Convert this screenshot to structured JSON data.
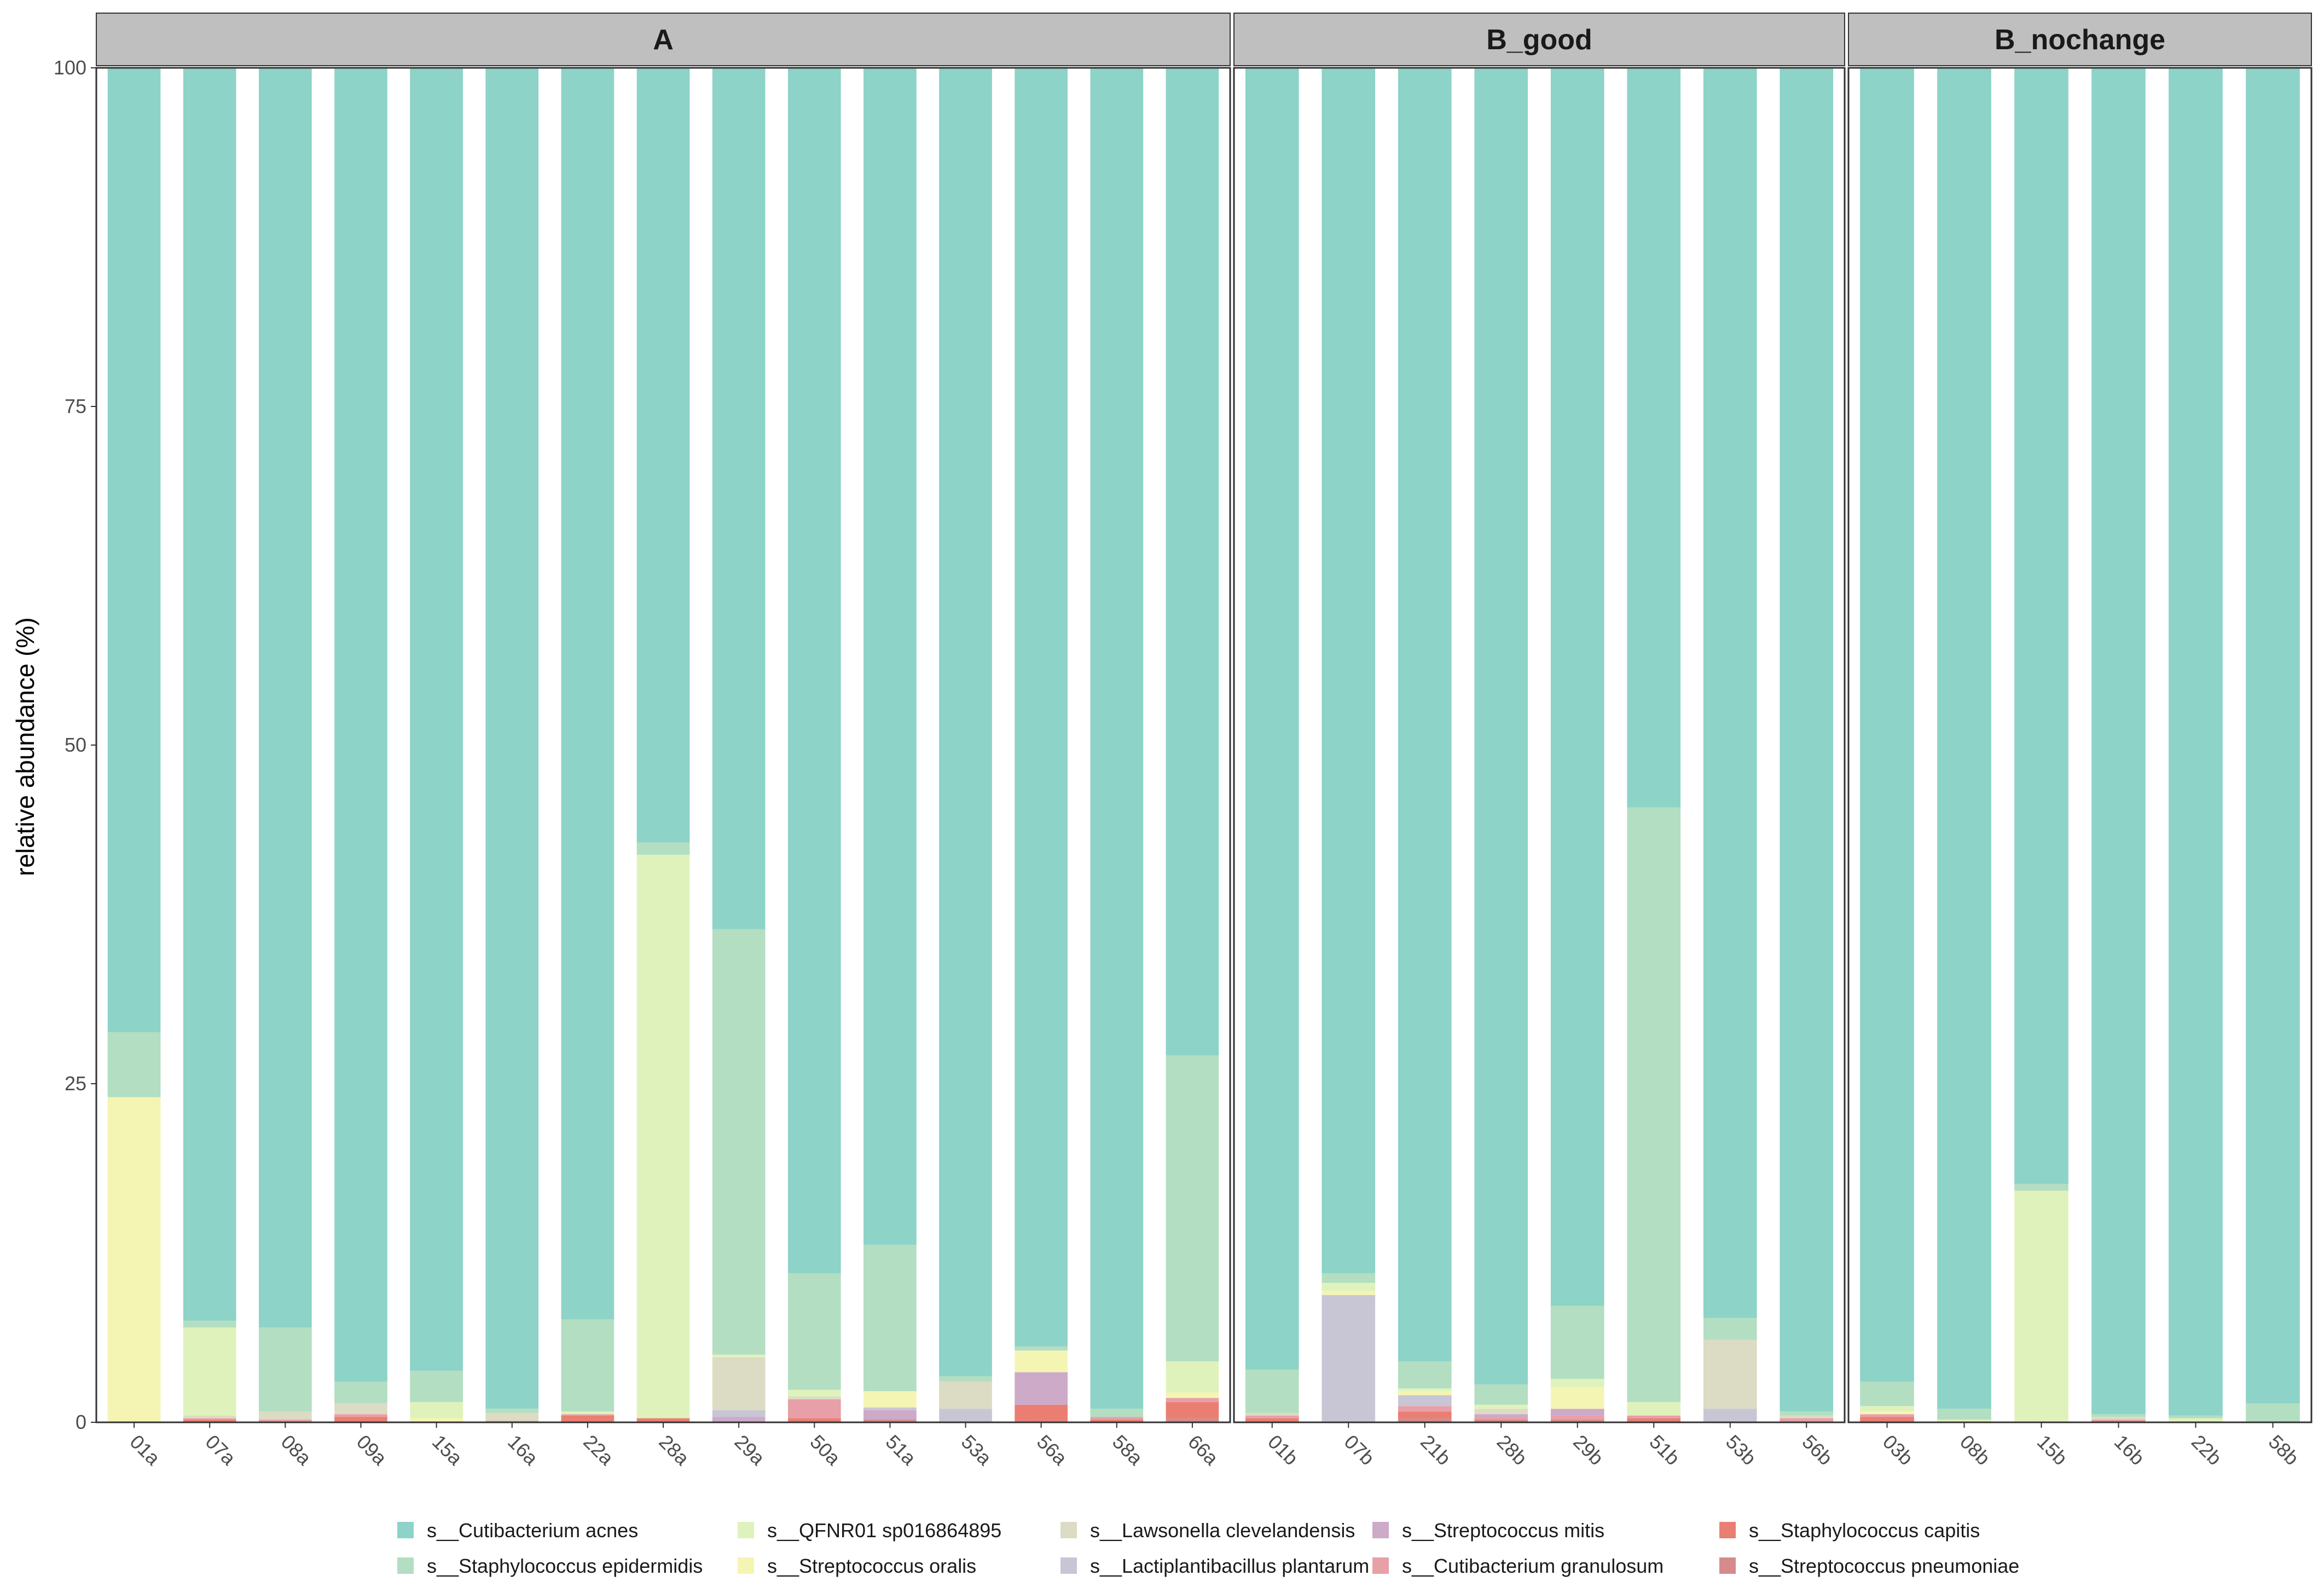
{
  "chart_data": {
    "type": "bar",
    "stacked": true,
    "ylabel": "relative abundance (%)",
    "ylim": [
      0,
      100
    ],
    "yticks": [
      0,
      25,
      50,
      75,
      100
    ],
    "legend_position": "bottom",
    "species": [
      {
        "name": "s__Cutibacterium acnes",
        "color": "#8DD3C7"
      },
      {
        "name": "s__Staphylococcus epidermidis",
        "color": "#B3DEC1"
      },
      {
        "name": "s__QFNR01 sp016864895",
        "color": "#E0F2BC"
      },
      {
        "name": "s__Streptococcus oralis",
        "color": "#F5F5B3"
      },
      {
        "name": "s__Lawsonella clevelandensis",
        "color": "#DCDBC4"
      },
      {
        "name": "s__Lactiplantibacillus plantarum",
        "color": "#C8C6D5"
      },
      {
        "name": "s__Streptococcus mitis",
        "color": "#CCAAC8"
      },
      {
        "name": "s__Cutibacterium granulosum",
        "color": "#E7A0A7"
      },
      {
        "name": "s__Staphylococcus capitis",
        "color": "#EB7E72"
      },
      {
        "name": "s__Streptococcus pneumoniae",
        "color": "#D68B8B"
      }
    ],
    "legend_order": [
      "s__Cutibacterium acnes",
      "s__Staphylococcus epidermidis",
      "s__QFNR01 sp016864895",
      "s__Streptococcus oralis",
      "s__Lawsonella clevelandensis",
      "s__Lactiplantibacillus plantarum",
      "s__Streptococcus mitis",
      "s__Cutibacterium granulosum",
      "s__Staphylococcus capitis",
      "s__Streptococcus pneumoniae"
    ],
    "panels": [
      {
        "title": "A",
        "samples": [
          {
            "id": "01a",
            "values": [
              71.2,
              4.8,
              0,
              24.0,
              0,
              0,
              0,
              0,
              0,
              0
            ]
          },
          {
            "id": "07a",
            "values": [
              92.5,
              0.5,
              6.5,
              0,
              0.2,
              0,
              0,
              0.1,
              0.2,
              0
            ]
          },
          {
            "id": "08a",
            "values": [
              93.0,
              6.2,
              0,
              0,
              0.6,
              0,
              0,
              0.2,
              0,
              0
            ]
          },
          {
            "id": "09a",
            "values": [
              97.0,
              1.6,
              0,
              0,
              0.8,
              0,
              0,
              0.2,
              0.4,
              0
            ]
          },
          {
            "id": "15a",
            "values": [
              96.2,
              2.3,
              1.2,
              0.3,
              0,
              0,
              0,
              0,
              0,
              0
            ]
          },
          {
            "id": "16a",
            "values": [
              99.0,
              0.3,
              0,
              0,
              0.6,
              0,
              0,
              0.1,
              0,
              0
            ]
          },
          {
            "id": "22a",
            "values": [
              92.4,
              6.8,
              0.2,
              0,
              0,
              0,
              0,
              0.1,
              0.5,
              0
            ]
          },
          {
            "id": "28a",
            "values": [
              57.2,
              0.9,
              41.6,
              0,
              0,
              0,
              0,
              0,
              0.3,
              0
            ]
          },
          {
            "id": "29a",
            "values": [
              63.6,
              31.4,
              0.2,
              0,
              3.9,
              0.5,
              0.4,
              0,
              0,
              0
            ]
          },
          {
            "id": "50a",
            "values": [
              89.0,
              8.6,
              0.5,
              0,
              0.2,
              0,
              0,
              1.4,
              0.3,
              0
            ]
          },
          {
            "id": "51a",
            "values": [
              86.9,
              10.8,
              0,
              1.2,
              0,
              0.2,
              0.7,
              0,
              0,
              0.2
            ]
          },
          {
            "id": "53a",
            "values": [
              96.6,
              0.4,
              0,
              0,
              2.0,
              1.0,
              0,
              0,
              0,
              0
            ]
          },
          {
            "id": "56a",
            "values": [
              94.4,
              0.3,
              0,
              1.6,
              0,
              0,
              2.4,
              0,
              1.2,
              0.1
            ]
          },
          {
            "id": "58a",
            "values": [
              99.0,
              0.6,
              0,
              0,
              0,
              0,
              0,
              0.2,
              0.2,
              0
            ]
          },
          {
            "id": "66a",
            "values": [
              72.9,
              22.6,
              2.3,
              0.4,
              0,
              0,
              0,
              0.3,
              1.2,
              0.3
            ]
          }
        ]
      },
      {
        "title": "B_good",
        "samples": [
          {
            "id": "01b",
            "values": [
              96.1,
              3.2,
              0,
              0,
              0.2,
              0,
              0,
              0.2,
              0.3,
              0
            ]
          },
          {
            "id": "07b",
            "values": [
              89.0,
              0.7,
              0.6,
              0.3,
              0,
              9.4,
              0,
              0,
              0,
              0
            ]
          },
          {
            "id": "21b",
            "values": [
              95.5,
              2.0,
              0.2,
              0.3,
              0,
              0.8,
              0,
              0.4,
              0.5,
              0.3
            ]
          },
          {
            "id": "28b",
            "values": [
              97.2,
              1.5,
              0.3,
              0,
              0.4,
              0,
              0.2,
              0.2,
              0,
              0.2
            ]
          },
          {
            "id": "29b",
            "values": [
              91.4,
              5.4,
              0.6,
              1.6,
              0,
              0,
              0.5,
              0.3,
              0,
              0.2
            ]
          },
          {
            "id": "51b",
            "values": [
              54.6,
              43.9,
              1.0,
              0,
              0,
              0,
              0,
              0.2,
              0.3,
              0
            ]
          },
          {
            "id": "53b",
            "values": [
              92.3,
              1.6,
              0,
              0,
              5.1,
              1.0,
              0,
              0,
              0,
              0
            ]
          },
          {
            "id": "56b",
            "values": [
              99.2,
              0.3,
              0,
              0,
              0.2,
              0,
              0,
              0.3,
              0,
              0
            ]
          }
        ]
      },
      {
        "title": "B_nochange",
        "samples": [
          {
            "id": "03b",
            "values": [
              97.0,
              1.8,
              0.4,
              0.2,
              0,
              0,
              0,
              0.2,
              0.4,
              0
            ]
          },
          {
            "id": "08b",
            "values": [
              99.0,
              0.8,
              0.2,
              0,
              0,
              0,
              0,
              0,
              0,
              0
            ]
          },
          {
            "id": "15b",
            "values": [
              82.4,
              0.5,
              17.1,
              0,
              0,
              0,
              0,
              0,
              0,
              0
            ]
          },
          {
            "id": "16b",
            "values": [
              99.4,
              0.2,
              0,
              0,
              0.2,
              0,
              0,
              0.1,
              0.1,
              0
            ]
          },
          {
            "id": "22b",
            "values": [
              99.5,
              0.2,
              0.3,
              0,
              0,
              0,
              0,
              0,
              0,
              0
            ]
          },
          {
            "id": "58b",
            "values": [
              98.6,
              1.4,
              0,
              0,
              0,
              0,
              0,
              0,
              0,
              0
            ]
          }
        ]
      }
    ]
  }
}
